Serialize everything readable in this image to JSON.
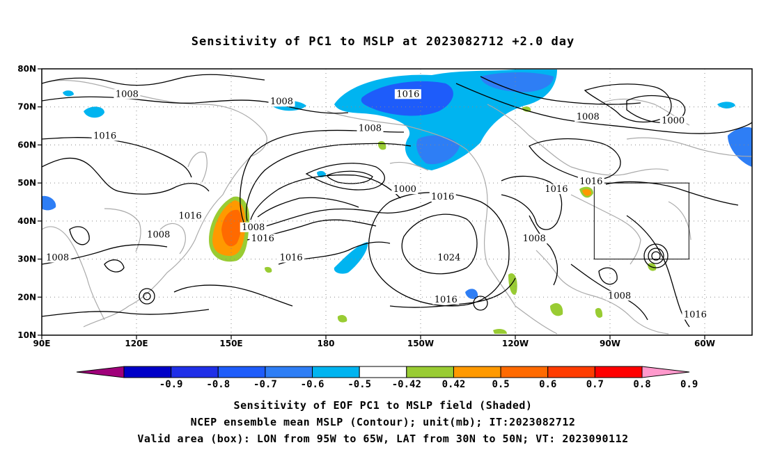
{
  "title": "Sensitivity of PC1 to MSLP at 2023082712 +2.0 day",
  "map": {
    "lat_ticks": [
      {
        "label": "80N",
        "lat": 80
      },
      {
        "label": "70N",
        "lat": 70
      },
      {
        "label": "60N",
        "lat": 60
      },
      {
        "label": "50N",
        "lat": 50
      },
      {
        "label": "40N",
        "lat": 40
      },
      {
        "label": "30N",
        "lat": 30
      },
      {
        "label": "20N",
        "lat": 20
      },
      {
        "label": "10N",
        "lat": 10
      }
    ],
    "lon_ticks": [
      {
        "label": "90E",
        "lon": 90
      },
      {
        "label": "120E",
        "lon": 120
      },
      {
        "label": "150E",
        "lon": 150
      },
      {
        "label": "180",
        "lon": 180
      },
      {
        "label": "150W",
        "lon": 210
      },
      {
        "label": "120W",
        "lon": 240
      },
      {
        "label": "90W",
        "lon": 270
      },
      {
        "label": "60W",
        "lon": 300
      }
    ],
    "lon_range": [
      90,
      315
    ],
    "lat_range": [
      10,
      80
    ],
    "gridlines": "dotted",
    "contour_labels": [
      {
        "text": "1008",
        "lon": 117,
        "lat": 73
      },
      {
        "text": "1008",
        "lon": 166,
        "lat": 71
      },
      {
        "text": "1016",
        "lon": 206,
        "lat": 73
      },
      {
        "text": "1016",
        "lon": 110,
        "lat": 62
      },
      {
        "text": "1008",
        "lon": 194,
        "lat": 64
      },
      {
        "text": "1008",
        "lon": 263,
        "lat": 67
      },
      {
        "text": "1000",
        "lon": 290,
        "lat": 66
      },
      {
        "text": "1000",
        "lon": 205,
        "lat": 48
      },
      {
        "text": "1016",
        "lon": 217,
        "lat": 46
      },
      {
        "text": "1016",
        "lon": 253,
        "lat": 48
      },
      {
        "text": "1016",
        "lon": 264,
        "lat": 50
      },
      {
        "text": "1016",
        "lon": 137,
        "lat": 41
      },
      {
        "text": "1008",
        "lon": 157,
        "lat": 38
      },
      {
        "text": "1016",
        "lon": 160,
        "lat": 35
      },
      {
        "text": "1008",
        "lon": 127,
        "lat": 36
      },
      {
        "text": "1008",
        "lon": 95,
        "lat": 30
      },
      {
        "text": "1016",
        "lon": 169,
        "lat": 30
      },
      {
        "text": "1008",
        "lon": 246,
        "lat": 35
      },
      {
        "text": "1024",
        "lon": 219,
        "lat": 30
      },
      {
        "text": "1016",
        "lon": 218,
        "lat": 19
      },
      {
        "text": "1008",
        "lon": 273,
        "lat": 20
      },
      {
        "text": "1016",
        "lon": 297,
        "lat": 15
      }
    ],
    "valid_box": {
      "lon_min": 265,
      "lon_max": 295,
      "lat_min": 30,
      "lat_max": 50
    }
  },
  "colorbar": {
    "colors": [
      "#a0007a",
      "#0000c8",
      "#1f2fe8",
      "#1e5cfa",
      "#2e7ef5",
      "#00b4f0",
      "#ffffff",
      "#99cc33",
      "#ff9900",
      "#ff6a00",
      "#ff3c00",
      "#ff0000",
      "#ff99cc"
    ],
    "labels": [
      "-0.9",
      "-0.8",
      "-0.7",
      "-0.6",
      "-0.5",
      "-0.42",
      "0.42",
      "0.5",
      "0.6",
      "0.7",
      "0.8",
      "0.9"
    ]
  },
  "footer": {
    "line1": "Sensitivity of EOF PC1 to MSLP field (Shaded)",
    "line2": "NCEP ensemble mean MSLP (Contour); unit(mb); IT:2023082712",
    "line3": "Valid area (box): LON from 95W to 65W, LAT from 30N to 50N; VT: 2023090112"
  }
}
